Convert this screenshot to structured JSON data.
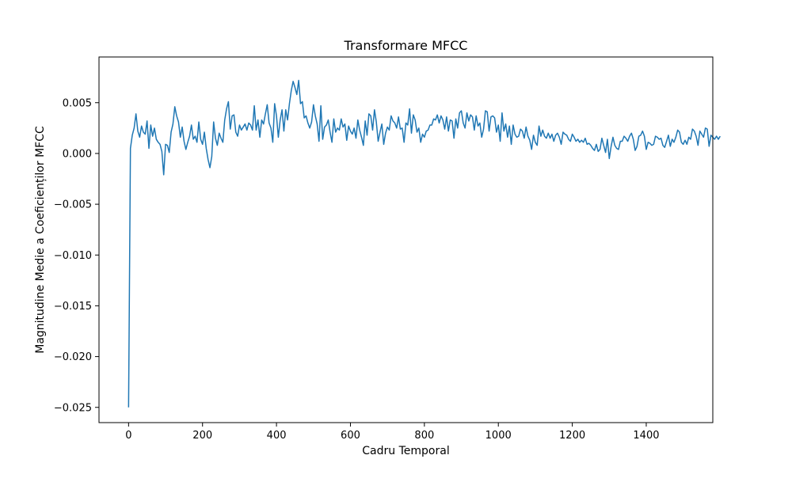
{
  "chart_data": {
    "type": "line",
    "title": "Transformare MFCC",
    "xlabel": "Cadru Temporal",
    "ylabel": "Magnitudine Medie a Coeficienților MFCC",
    "xlim": [
      -80,
      1580
    ],
    "ylim": [
      -0.0265,
      0.0095
    ],
    "x_ticks": [
      0,
      200,
      400,
      600,
      800,
      1000,
      1200,
      1400
    ],
    "x_tick_labels": [
      "0",
      "200",
      "400",
      "600",
      "800",
      "1000",
      "1200",
      "1400"
    ],
    "y_ticks": [
      -0.025,
      -0.02,
      -0.015,
      -0.01,
      -0.005,
      0.0,
      0.005
    ],
    "y_tick_labels": [
      "−0.025",
      "−0.020",
      "−0.015",
      "−0.010",
      "−0.005",
      "0.000",
      "0.005"
    ],
    "grid": false,
    "line_color": "#1f77b4",
    "series": [
      {
        "x_start": 0,
        "x_step": 5,
        "values": [
          -0.025,
          0.0005,
          0.0018,
          0.0025,
          0.0039,
          0.0022,
          0.0016,
          0.0027,
          0.0021,
          0.0019,
          0.0032,
          0.0005,
          0.0028,
          0.0017,
          0.0025,
          0.0014,
          0.0011,
          0.0009,
          0.0002,
          -0.0021,
          0.0009,
          0.0008,
          0.0001,
          0.0021,
          0.0029,
          0.0046,
          0.0037,
          0.0031,
          0.0016,
          0.0026,
          0.0012,
          0.0004,
          0.0011,
          0.0017,
          0.0028,
          0.0014,
          0.0017,
          0.0011,
          0.0031,
          0.0014,
          0.0009,
          0.0021,
          0.0005,
          -0.0006,
          -0.0014,
          -0.0003,
          0.0031,
          0.0015,
          0.0008,
          0.002,
          0.0015,
          0.0011,
          0.0033,
          0.0044,
          0.0051,
          0.0024,
          0.0037,
          0.0038,
          0.0021,
          0.0017,
          0.0028,
          0.0023,
          0.0026,
          0.0029,
          0.0023,
          0.003,
          0.0028,
          0.0023,
          0.0047,
          0.0023,
          0.0033,
          0.0016,
          0.0033,
          0.0029,
          0.0039,
          0.0048,
          0.003,
          0.0025,
          0.0011,
          0.0049,
          0.0037,
          0.0016,
          0.0033,
          0.0043,
          0.0022,
          0.0043,
          0.0033,
          0.0049,
          0.0062,
          0.0071,
          0.0065,
          0.0058,
          0.0072,
          0.0049,
          0.0051,
          0.0035,
          0.0037,
          0.003,
          0.0025,
          0.0031,
          0.0048,
          0.0037,
          0.0029,
          0.0012,
          0.0047,
          0.0014,
          0.0026,
          0.0028,
          0.0033,
          0.0021,
          0.0011,
          0.0034,
          0.0021,
          0.0025,
          0.0023,
          0.0034,
          0.0026,
          0.0029,
          0.0013,
          0.0027,
          0.0022,
          0.0019,
          0.0025,
          0.0015,
          0.0033,
          0.0023,
          0.0016,
          0.0008,
          0.0032,
          0.0018,
          0.0039,
          0.0037,
          0.0023,
          0.0043,
          0.0031,
          0.0012,
          0.0021,
          0.0029,
          0.0009,
          0.002,
          0.0026,
          0.0023,
          0.0037,
          0.0032,
          0.003,
          0.0025,
          0.0036,
          0.0024,
          0.0025,
          0.0011,
          0.003,
          0.0028,
          0.0044,
          0.002,
          0.0038,
          0.0033,
          0.0021,
          0.0025,
          0.0011,
          0.0019,
          0.0016,
          0.0022,
          0.0023,
          0.0028,
          0.0028,
          0.0034,
          0.0033,
          0.0038,
          0.003,
          0.0037,
          0.0033,
          0.0024,
          0.0036,
          0.0022,
          0.0033,
          0.0032,
          0.0015,
          0.0034,
          0.0025,
          0.004,
          0.0042,
          0.003,
          0.0025,
          0.004,
          0.0032,
          0.0038,
          0.0036,
          0.0023,
          0.0037,
          0.0027,
          0.003,
          0.0016,
          0.0024,
          0.0042,
          0.0041,
          0.0022,
          0.0036,
          0.0037,
          0.0035,
          0.0021,
          0.0028,
          0.0012,
          0.004,
          0.0022,
          0.0029,
          0.0016,
          0.0027,
          0.0009,
          0.0028,
          0.0019,
          0.0016,
          0.0017,
          0.0024,
          0.0022,
          0.0015,
          0.0026,
          0.0017,
          0.0013,
          0.0004,
          0.0018,
          0.0011,
          0.0008,
          0.0027,
          0.0017,
          0.0023,
          0.0017,
          0.0015,
          0.002,
          0.0015,
          0.0019,
          0.0012,
          0.0018,
          0.002,
          0.0016,
          0.0009,
          0.0021,
          0.0019,
          0.0018,
          0.0014,
          0.0012,
          0.0019,
          0.0016,
          0.0012,
          0.0014,
          0.0011,
          0.0013,
          0.0011,
          0.0015,
          0.0009,
          0.001,
          0.0008,
          0.0005,
          0.0003,
          0.0009,
          0.0002,
          0.0004,
          0.0015,
          0.0008,
          0.0001,
          0.0014,
          -0.0005,
          0.0007,
          0.0016,
          0.0008,
          0.0005,
          0.0004,
          0.0012,
          0.0012,
          0.0017,
          0.0015,
          0.0012,
          0.0017,
          0.002,
          0.0014,
          0.0003,
          0.0007,
          0.0017,
          0.0018,
          0.0022,
          0.0017,
          0.0004,
          0.0011,
          0.001,
          0.0008,
          0.0009,
          0.0017,
          0.0016,
          0.0014,
          0.0015,
          0.0008,
          0.0006,
          0.0012,
          0.0018,
          0.0007,
          0.0014,
          0.0011,
          0.0016,
          0.0023,
          0.0021,
          0.0011,
          0.0009,
          0.0013,
          0.0009,
          0.0016,
          0.0014,
          0.0024,
          0.0022,
          0.0017,
          0.0008,
          0.0022,
          0.0019,
          0.0016,
          0.0025,
          0.0024,
          0.0007,
          0.0018,
          0.0016,
          0.0014,
          0.0017,
          0.0014,
          0.0017
        ]
      }
    ]
  }
}
